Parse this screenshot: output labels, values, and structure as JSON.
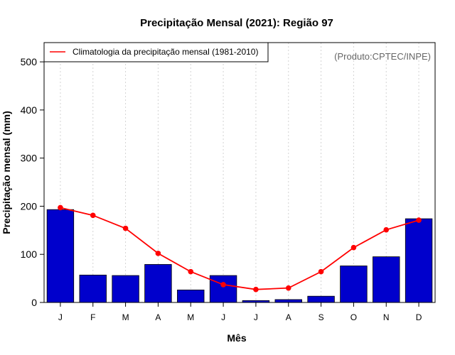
{
  "chart_data": {
    "type": "bar",
    "title": "Precipitação Mensal (2021): Região 97",
    "xlabel": "Mês",
    "ylabel": "Precipitação mensal (mm)",
    "categories": [
      "J",
      "F",
      "M",
      "A",
      "M",
      "J",
      "J",
      "A",
      "S",
      "O",
      "N",
      "D"
    ],
    "ylim": [
      0,
      540
    ],
    "yticks": [
      0,
      100,
      200,
      300,
      400,
      500
    ],
    "grid": "vertical-dotted",
    "series": [
      {
        "name": "Precipitação mensal (2021)",
        "type": "bar",
        "color": "#0000cc",
        "values": [
          193,
          57,
          56,
          79,
          26,
          56,
          4,
          6,
          13,
          76,
          95,
          174
        ]
      },
      {
        "name": "Climatologia da precipitação mensal (1981-2010)",
        "type": "line",
        "color": "#ff0000",
        "values": [
          197,
          181,
          154,
          102,
          64,
          37,
          27,
          30,
          64,
          114,
          151,
          171
        ]
      }
    ],
    "legend": {
      "position": "top-left",
      "entries": [
        "Climatologia da precipitação mensal (1981-2010)"
      ]
    },
    "annotation": "(Produto:CPTEC/INPE)"
  }
}
